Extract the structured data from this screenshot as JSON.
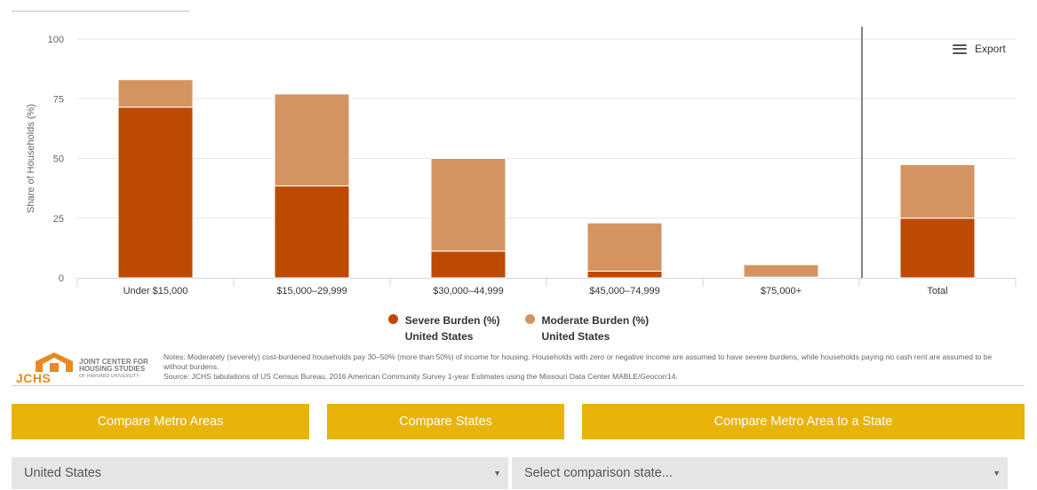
{
  "chart_data": {
    "type": "bar",
    "stacked": true,
    "categories": [
      "Under $15,000",
      "$15,000–29,999",
      "$30,000–44,999",
      "$45,000–74,999",
      "$75,000+",
      "Total"
    ],
    "series": [
      {
        "name": "Severe Burden (%)",
        "subname": "United States",
        "color": "#bd4a02",
        "values": [
          71.5,
          38.5,
          11.2,
          2.8,
          0.3,
          25.0
        ]
      },
      {
        "name": "Moderate Burden (%)",
        "subname": "United States",
        "color": "#d49462",
        "values": [
          11.5,
          38.5,
          38.8,
          20.2,
          5.2,
          22.4
        ]
      }
    ],
    "ylabel": "Share of Households (%)",
    "ylim": [
      0,
      100
    ],
    "yticks": [
      0,
      25,
      50,
      75,
      100
    ],
    "grid": true,
    "legend_position": "bottom-center"
  },
  "export_label": "Export",
  "logo": {
    "abbr": "JCHS",
    "line1": "JOINT CENTER FOR",
    "line2": "HOUSING STUDIES",
    "line3": "OF HARVARD UNIVERSITY"
  },
  "notes": "Notes: Moderately (severely) cost-burdened households pay 30–50% (more than 50%) of income for housing. Households with zero or negative income are assumed to have severe burdens, while households paying no cash rent are assumed to be without burdens.",
  "source": "Source: JCHS tabulations of US Census Bureau, 2016 American Community Survey 1-year Estimates using the Missouri Data Center MABLE/Geocorr14.",
  "buttons": {
    "compare_metro": "Compare Metro Areas",
    "compare_states": "Compare States",
    "compare_metro_state": "Compare Metro Area to a State"
  },
  "selects": {
    "primary_value": "United States",
    "comparison_placeholder": "Select comparison state..."
  },
  "colors": {
    "accent_button": "#e8b40a",
    "severe": "#bd4a02",
    "moderate": "#d49462"
  }
}
